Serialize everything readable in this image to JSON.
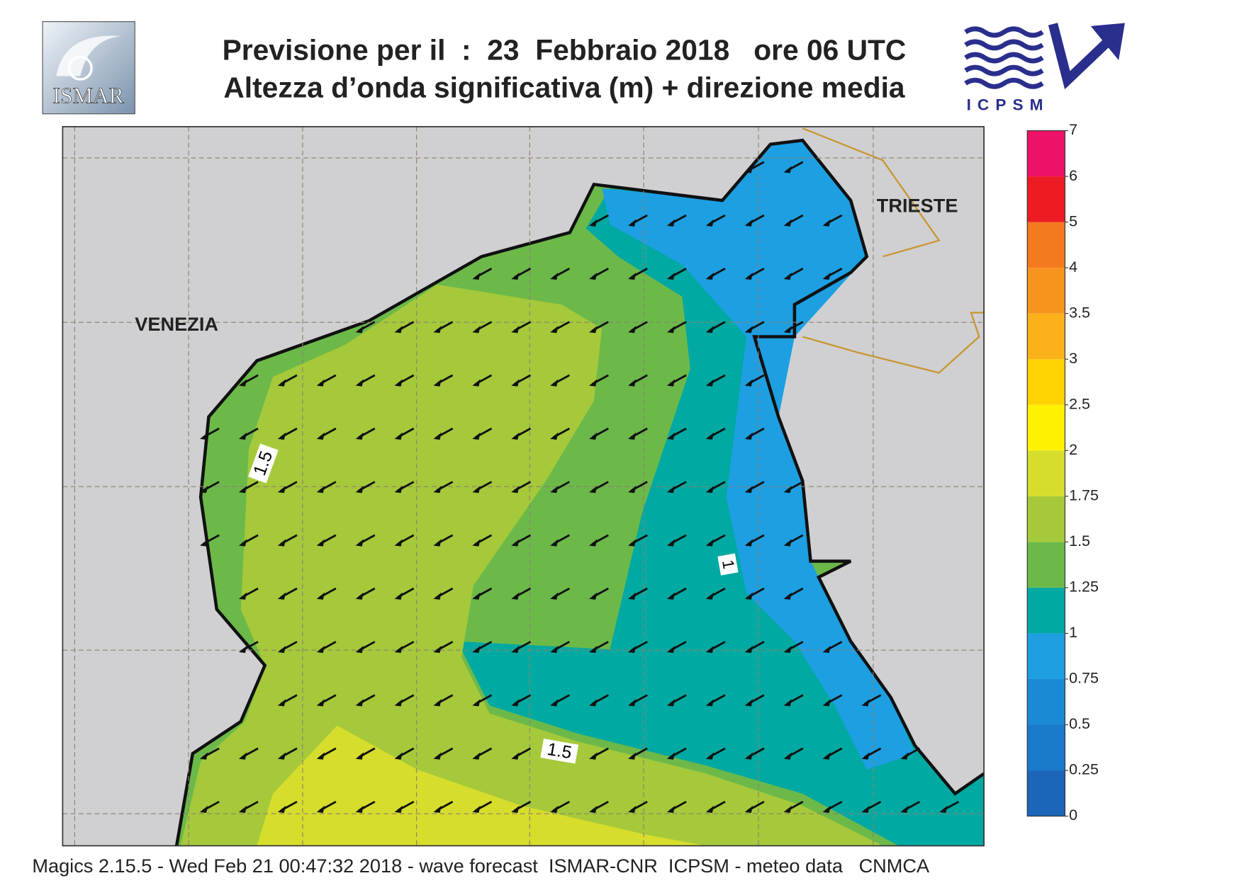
{
  "header": {
    "title_line1": "Previsione per il  :  23  Febbraio 2018   ore 06 UTC",
    "title_line2": "Altezza d’onda significativa (m) + direzione media"
  },
  "logos": {
    "left": "ISMAR",
    "right": "ICPSM"
  },
  "map": {
    "places": [
      "VENEZIA",
      "TRIESTE"
    ],
    "contour_labels": [
      1.5,
      1.5,
      1
    ]
  },
  "colorbar": {
    "levels": [
      0,
      0.25,
      0.5,
      0.75,
      1,
      1.25,
      1.5,
      1.75,
      2,
      2.5,
      3,
      3.5,
      4,
      5,
      6,
      7
    ],
    "colors": [
      "#1b66b8",
      "#1a7acb",
      "#1b8ad6",
      "#1d9fe2",
      "#00a9a1",
      "#6cb94a",
      "#a5c93a",
      "#d6dd2c",
      "#fff200",
      "#ffd200",
      "#fbb21a",
      "#f7941d",
      "#f47a20",
      "#ed1c24",
      "#ec1367"
    ]
  },
  "footer": "Magics 2.15.5 - Wed Feb 21 00:47:32 2018 - wave forecast  ISMAR-CNR  ICPSM - meteo data   CNMCA"
}
